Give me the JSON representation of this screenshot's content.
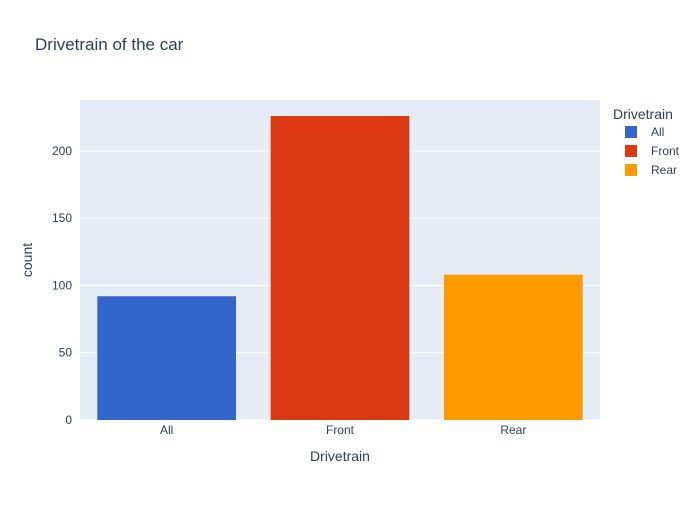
{
  "chart_data": {
    "type": "bar",
    "title": "Drivetrain of the car",
    "xlabel": "Drivetrain",
    "ylabel": "count",
    "categories": [
      "All",
      "Front",
      "Rear"
    ],
    "values": [
      92,
      226,
      108
    ],
    "colors": [
      "#3366cc",
      "#dc3912",
      "#ff9900"
    ],
    "ylim": [
      0,
      237.9
    ],
    "yticks": [
      0,
      50,
      100,
      150,
      200
    ],
    "grid": true,
    "plot_background": "#e5ecf6",
    "legend": {
      "title": "Drivetrain",
      "position": "top-right",
      "entries": [
        "All",
        "Front",
        "Rear"
      ]
    }
  }
}
